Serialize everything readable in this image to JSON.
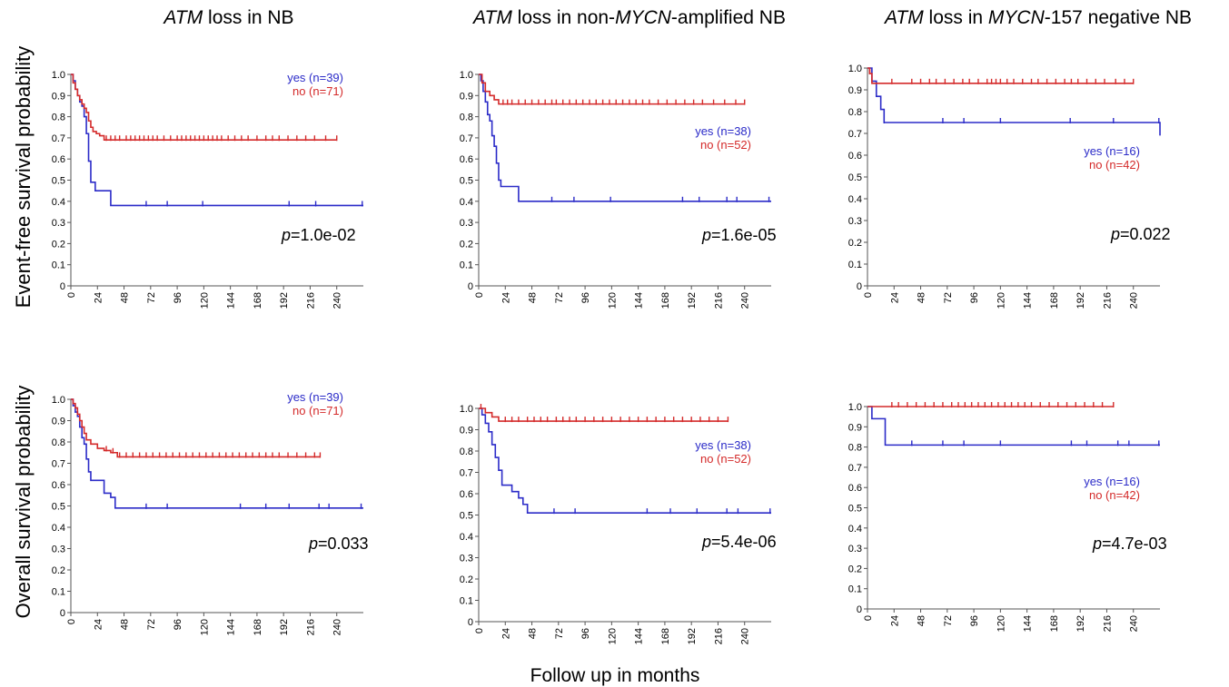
{
  "colors": {
    "yes": "#2b2bc8",
    "no": "#d42a2a",
    "axis": "#555555"
  },
  "figure": {
    "col_titles": [
      {
        "pre_italic": "ATM",
        "mid": " loss in NB",
        "italic2": "",
        "post": ""
      },
      {
        "pre_italic": "ATM",
        "mid": " loss in non-",
        "italic2": "MYCN",
        "post": "-amplified NB"
      },
      {
        "pre_italic": "ATM",
        "mid": " loss in ",
        "italic2": "MYCN",
        "post": "-157 negative NB"
      }
    ],
    "row_labels": [
      "Event-free survival probability",
      "Overall survival probability"
    ],
    "xlabel": "Follow up in months"
  },
  "chart_data": [
    {
      "type": "line",
      "title": "ATM loss in NB",
      "ylabel": "Event-free survival probability",
      "xlabel": "Follow up in months",
      "p_label": "p",
      "p_value": "=1.0e-02",
      "xlim": [
        0,
        264
      ],
      "ylim": [
        0,
        1
      ],
      "xticks": [
        "0",
        "24",
        "48",
        "72",
        "96",
        "120",
        "144",
        "168",
        "192",
        "216",
        "240"
      ],
      "yticks": [
        "0",
        "0.1",
        "0.2",
        "0.3",
        "0.4",
        "0.5",
        "0.6",
        "0.7",
        "0.8",
        "0.9",
        "1.0"
      ],
      "series": [
        {
          "name": "yes (n=39)",
          "color": "#2b2bc8",
          "x": [
            0,
            2,
            4,
            6,
            8,
            10,
            12,
            14,
            16,
            18,
            22,
            28,
            36,
            264
          ],
          "y": [
            1.0,
            0.97,
            0.93,
            0.9,
            0.87,
            0.85,
            0.8,
            0.72,
            0.59,
            0.49,
            0.45,
            0.45,
            0.38,
            0.38
          ],
          "censored_x": [
            68,
            87,
            119,
            197,
            221,
            263
          ]
        },
        {
          "name": "no (n=71)",
          "color": "#d42a2a",
          "x": [
            0,
            2,
            4,
            6,
            8,
            10,
            12,
            14,
            16,
            18,
            20,
            23,
            26,
            30,
            240
          ],
          "y": [
            1.0,
            0.96,
            0.93,
            0.9,
            0.88,
            0.86,
            0.84,
            0.82,
            0.78,
            0.75,
            0.73,
            0.72,
            0.71,
            0.69,
            0.69
          ],
          "censored_x": [
            32,
            36,
            40,
            44,
            50,
            54,
            58,
            62,
            66,
            70,
            74,
            78,
            84,
            90,
            96,
            100,
            104,
            108,
            112,
            116,
            120,
            124,
            128,
            132,
            136,
            142,
            148,
            154,
            160,
            168,
            176,
            182,
            188,
            196,
            204,
            212,
            220,
            230,
            240
          ]
        }
      ]
    },
    {
      "type": "line",
      "title": "ATM loss in non-MYCN-amplified NB",
      "ylabel": "Event-free survival probability",
      "xlabel": "Follow up in months",
      "p_label": "p",
      "p_value": "=1.6e-05",
      "xlim": [
        0,
        264
      ],
      "ylim": [
        0,
        1
      ],
      "xticks": [
        "0",
        "24",
        "48",
        "72",
        "96",
        "120",
        "144",
        "168",
        "192",
        "216",
        "240"
      ],
      "yticks": [
        "0",
        "0.1",
        "0.2",
        "0.3",
        "0.4",
        "0.5",
        "0.6",
        "0.7",
        "0.8",
        "0.9",
        "1.0"
      ],
      "series": [
        {
          "name": "yes (n=38)",
          "color": "#2b2bc8",
          "x": [
            0,
            2,
            4,
            6,
            8,
            10,
            12,
            14,
            16,
            18,
            20,
            24,
            30,
            36,
            264
          ],
          "y": [
            1.0,
            0.97,
            0.92,
            0.87,
            0.81,
            0.78,
            0.71,
            0.66,
            0.58,
            0.5,
            0.47,
            0.47,
            0.47,
            0.4,
            0.4
          ],
          "censored_x": [
            66,
            86,
            119,
            184,
            199,
            224,
            233,
            262
          ]
        },
        {
          "name": "no (n=52)",
          "color": "#d42a2a",
          "x": [
            0,
            3,
            6,
            10,
            14,
            18,
            240
          ],
          "y": [
            1.0,
            0.96,
            0.92,
            0.9,
            0.88,
            0.86,
            0.86
          ],
          "censored_x": [
            22,
            26,
            30,
            36,
            42,
            48,
            54,
            60,
            66,
            70,
            76,
            82,
            88,
            94,
            100,
            106,
            112,
            118,
            124,
            130,
            136,
            142,
            148,
            154,
            162,
            170,
            178,
            186,
            194,
            202,
            212,
            222,
            232,
            240
          ]
        }
      ]
    },
    {
      "type": "line",
      "title": "ATM loss in MYCN-157 negative NB",
      "ylabel": "Event-free survival probability",
      "xlabel": "Follow up in months",
      "p_label": "p",
      "p_value": "=0.022",
      "xlim": [
        0,
        264
      ],
      "ylim": [
        0,
        1
      ],
      "xticks": [
        "0",
        "24",
        "48",
        "72",
        "96",
        "120",
        "144",
        "168",
        "192",
        "216",
        "240"
      ],
      "yticks": [
        "0",
        "0.1",
        "0.2",
        "0.3",
        "0.4",
        "0.5",
        "0.6",
        "0.7",
        "0.8",
        "0.9",
        "1.0"
      ],
      "series": [
        {
          "name": "yes (n=16)",
          "color": "#2b2bc8",
          "x": [
            0,
            4,
            8,
            12,
            15,
            264
          ],
          "y": [
            1.0,
            0.94,
            0.87,
            0.81,
            0.75,
            0.69
          ],
          "censored_x": [
            15,
            68,
            87,
            120,
            183,
            222,
            263
          ]
        },
        {
          "name": "no (n=42)",
          "color": "#d42a2a",
          "x": [
            0,
            2,
            4,
            240
          ],
          "y": [
            1.0,
            0.975,
            0.93,
            0.93
          ],
          "censored_x": [
            2,
            22,
            40,
            48,
            56,
            62,
            70,
            78,
            86,
            92,
            100,
            108,
            112,
            116,
            120,
            126,
            132,
            140,
            148,
            154,
            162,
            170,
            178,
            184,
            190,
            198,
            206,
            214,
            224,
            232,
            240
          ]
        }
      ]
    },
    {
      "type": "line",
      "title": "ATM loss in NB",
      "ylabel": "Overall survival probability",
      "xlabel": "Follow up in months",
      "p_label": "p",
      "p_value": "=0.033",
      "xlim": [
        0,
        264
      ],
      "ylim": [
        0,
        1
      ],
      "xticks": [
        "0",
        "24",
        "48",
        "72",
        "96",
        "120",
        "144",
        "168",
        "192",
        "216",
        "240"
      ],
      "yticks": [
        "0",
        "0.1",
        "0.2",
        "0.3",
        "0.4",
        "0.5",
        "0.6",
        "0.7",
        "0.8",
        "0.9",
        "1.0"
      ],
      "series": [
        {
          "name": "yes (n=39)",
          "color": "#2b2bc8",
          "x": [
            0,
            2,
            4,
            6,
            8,
            10,
            12,
            14,
            16,
            18,
            30,
            36,
            40,
            264
          ],
          "y": [
            1.0,
            0.97,
            0.94,
            0.92,
            0.87,
            0.82,
            0.79,
            0.72,
            0.66,
            0.62,
            0.56,
            0.54,
            0.49,
            0.49
          ],
          "censored_x": [
            68,
            87,
            153,
            176,
            197,
            224,
            233,
            262
          ]
        },
        {
          "name": "no (n=71)",
          "color": "#d42a2a",
          "x": [
            0,
            2,
            4,
            6,
            8,
            10,
            12,
            14,
            18,
            24,
            30,
            36,
            42,
            225
          ],
          "y": [
            1.0,
            0.98,
            0.96,
            0.93,
            0.9,
            0.87,
            0.84,
            0.81,
            0.79,
            0.77,
            0.76,
            0.75,
            0.73,
            0.73
          ],
          "censored_x": [
            32,
            38,
            44,
            50,
            56,
            62,
            68,
            74,
            80,
            86,
            92,
            98,
            104,
            110,
            116,
            122,
            128,
            134,
            140,
            146,
            152,
            158,
            164,
            170,
            176,
            182,
            188,
            196,
            204,
            212,
            220,
            225
          ]
        }
      ]
    },
    {
      "type": "line",
      "title": "ATM loss in non-MYCN-amplified NB",
      "ylabel": "Overall survival probability",
      "xlabel": "Follow up in months",
      "p_label": "p",
      "p_value": "=5.4e-06",
      "xlim": [
        0,
        264
      ],
      "ylim": [
        0,
        1
      ],
      "xticks": [
        "0",
        "24",
        "48",
        "72",
        "96",
        "120",
        "144",
        "168",
        "192",
        "216",
        "240"
      ],
      "yticks": [
        "0",
        "0.1",
        "0.2",
        "0.3",
        "0.4",
        "0.5",
        "0.6",
        "0.7",
        "0.8",
        "0.9",
        "1.0"
      ],
      "series": [
        {
          "name": "yes (n=38)",
          "color": "#2b2bc8",
          "x": [
            0,
            3,
            6,
            9,
            12,
            15,
            18,
            21,
            30,
            36,
            40,
            44,
            264
          ],
          "y": [
            1.0,
            0.97,
            0.93,
            0.89,
            0.83,
            0.77,
            0.71,
            0.64,
            0.61,
            0.58,
            0.55,
            0.51,
            0.51
          ],
          "censored_x": [
            68,
            87,
            152,
            173,
            197,
            224,
            234,
            263
          ]
        },
        {
          "name": "no (n=52)",
          "color": "#d42a2a",
          "x": [
            0,
            6,
            12,
            18,
            225
          ],
          "y": [
            1.0,
            0.98,
            0.96,
            0.94,
            0.94
          ],
          "censored_x": [
            2,
            6,
            24,
            30,
            36,
            44,
            50,
            56,
            62,
            70,
            76,
            82,
            88,
            96,
            104,
            112,
            120,
            128,
            136,
            144,
            152,
            160,
            168,
            176,
            184,
            192,
            200,
            208,
            216,
            225
          ]
        }
      ]
    },
    {
      "type": "line",
      "title": "ATM loss in MYCN-157 negative NB",
      "ylabel": "Overall survival probability",
      "xlabel": "Follow up in months",
      "p_label": "p",
      "p_value": "=4.7e-03",
      "xlim": [
        0,
        264
      ],
      "ylim": [
        0,
        1
      ],
      "xticks": [
        "0",
        "24",
        "48",
        "72",
        "96",
        "120",
        "144",
        "168",
        "192",
        "216",
        "240"
      ],
      "yticks": [
        "0",
        "0.1",
        "0.2",
        "0.3",
        "0.4",
        "0.5",
        "0.6",
        "0.7",
        "0.8",
        "0.9",
        "1.0"
      ],
      "series": [
        {
          "name": "yes (n=16)",
          "color": "#2b2bc8",
          "x": [
            0,
            4,
            10,
            16,
            264
          ],
          "y": [
            1.0,
            0.94,
            0.94,
            0.81,
            0.81
          ],
          "censored_x": [
            40,
            68,
            87,
            120,
            184,
            198,
            226,
            236,
            263
          ]
        },
        {
          "name": "no (n=42)",
          "color": "#d42a2a",
          "x": [
            0,
            222
          ],
          "y": [
            1.0,
            1.0
          ],
          "censored_x": [
            22,
            28,
            36,
            44,
            52,
            60,
            68,
            76,
            82,
            88,
            94,
            100,
            106,
            112,
            118,
            124,
            130,
            136,
            142,
            148,
            156,
            164,
            172,
            180,
            188,
            196,
            204,
            212,
            222
          ]
        }
      ]
    }
  ]
}
